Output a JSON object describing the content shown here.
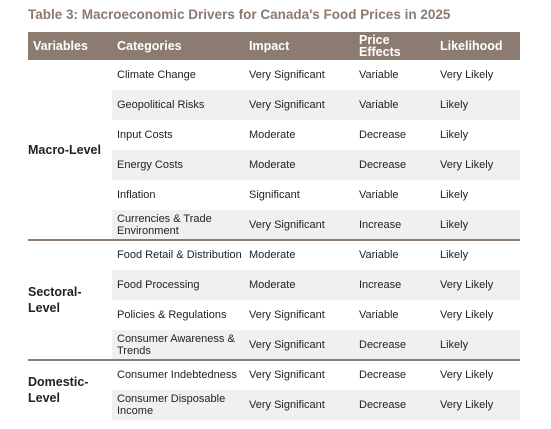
{
  "title": "Table 3: Macroeconomic Drivers for Canada's Food Prices in 2025",
  "headers": {
    "variables": "Variables",
    "categories": "Categories",
    "impact": "Impact",
    "price_effects": "Price Effects",
    "likelihood": "Likelihood"
  },
  "groups": [
    {
      "label": "Macro-Level"
    },
    {
      "label": "Sectoral-Level"
    },
    {
      "label": "Domestic-Level"
    }
  ],
  "rows": [
    {
      "category": "Climate Change",
      "impact": "Very Significant",
      "effect": "Variable",
      "likelihood": "Very Likely"
    },
    {
      "category": "Geopolitical Risks",
      "impact": "Very Significant",
      "effect": "Variable",
      "likelihood": "Likely"
    },
    {
      "category": "Input Costs",
      "impact": "Moderate",
      "effect": "Decrease",
      "likelihood": "Likely"
    },
    {
      "category": "Energy Costs",
      "impact": "Moderate",
      "effect": "Decrease",
      "likelihood": "Very Likely"
    },
    {
      "category": "Inflation",
      "impact": "Significant",
      "effect": "Variable",
      "likelihood": "Likely"
    },
    {
      "category": "Currencies & Trade Environment",
      "impact": "Very Significant",
      "effect": "Increase",
      "likelihood": "Likely"
    },
    {
      "category": "Food Retail & Distribution",
      "impact": "Moderate",
      "effect": "Variable",
      "likelihood": "Likely"
    },
    {
      "category": "Food Processing",
      "impact": "Moderate",
      "effect": "Increase",
      "likelihood": "Very Likely"
    },
    {
      "category": "Policies & Regulations",
      "impact": "Very Significant",
      "effect": "Variable",
      "likelihood": "Very Likely"
    },
    {
      "category": "Consumer Awareness & Trends",
      "impact": "Very Significant",
      "effect": "Decrease",
      "likelihood": "Likely"
    },
    {
      "category": "Consumer Indebtedness",
      "impact": "Very Significant",
      "effect": "Decrease",
      "likelihood": "Very Likely"
    },
    {
      "category": "Consumer Disposable Income",
      "impact": "Very Significant",
      "effect": "Decrease",
      "likelihood": "Very Likely"
    }
  ]
}
